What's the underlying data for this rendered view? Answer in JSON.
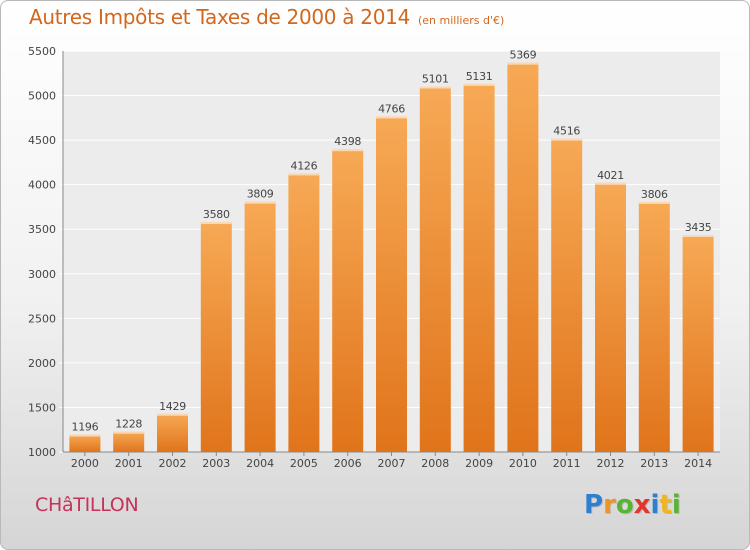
{
  "chart_data": {
    "type": "bar",
    "title": "Autres Impôts et Taxes de 2000 à 2014",
    "subtitle": "(en milliers d'€)",
    "categories": [
      "2000",
      "2001",
      "2002",
      "2003",
      "2004",
      "2005",
      "2006",
      "2007",
      "2008",
      "2009",
      "2010",
      "2011",
      "2012",
      "2013",
      "2014"
    ],
    "values": [
      1196,
      1228,
      1429,
      3580,
      3809,
      4126,
      4398,
      4766,
      5101,
      5131,
      5369,
      4516,
      4021,
      3806,
      3435
    ],
    "ylim": [
      1000,
      5500
    ],
    "yticks": [
      1000,
      1500,
      2000,
      2500,
      3000,
      3500,
      4000,
      4500,
      5000,
      5500
    ],
    "grid": true,
    "bar_color": "#f08a2c",
    "bar_color_light": "#f7a955",
    "bar_color_dark": "#e0741b"
  },
  "footer": {
    "city": "CHâTILLON",
    "brand_letters": [
      {
        "ch": "P",
        "color": "#2f7fd0"
      },
      {
        "ch": "r",
        "color": "#f0941f"
      },
      {
        "ch": "o",
        "color": "#57b52f"
      },
      {
        "ch": "x",
        "color": "#e2352b"
      },
      {
        "ch": "i",
        "color": "#2f7fd0"
      },
      {
        "ch": "t",
        "color": "#f0b51f"
      },
      {
        "ch": "i",
        "color": "#57b52f"
      }
    ]
  }
}
